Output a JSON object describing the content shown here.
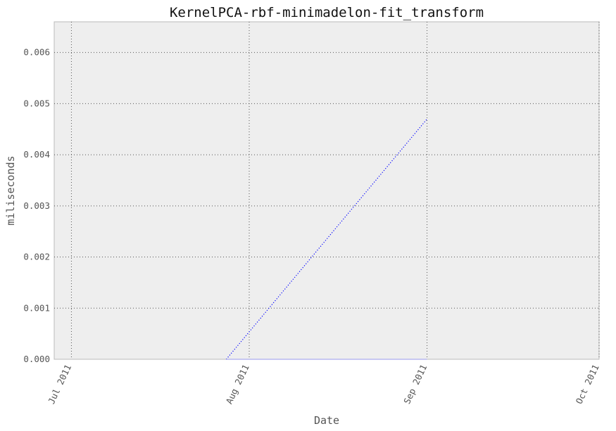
{
  "chart_data": {
    "type": "line",
    "title": "KernelPCA-rbf-minimadelon-fit_transform",
    "xlabel": "Date",
    "ylabel": "miliseconds",
    "x_ticks": [
      "Jul 2011",
      "Aug 2011",
      "Sep 2011",
      "Oct 2011"
    ],
    "y_ticks": [
      "0.000",
      "0.001",
      "0.002",
      "0.003",
      "0.004",
      "0.005",
      "0.006"
    ],
    "xlim": [
      "2011-06-28",
      "2011-10-01"
    ],
    "ylim": [
      0,
      0.0066
    ],
    "grid": true,
    "series": [
      {
        "style": "dotted",
        "color": "#0000ff",
        "points": [
          {
            "x": "2011-07-28",
            "y": 0.0
          },
          {
            "x": "2011-09-01",
            "y": 0.0047
          }
        ]
      },
      {
        "style": "solid",
        "color": "#aaaaee",
        "points": [
          {
            "x": "2011-07-28",
            "y": 0.0
          },
          {
            "x": "2011-09-01",
            "y": 0.0
          }
        ]
      }
    ]
  }
}
